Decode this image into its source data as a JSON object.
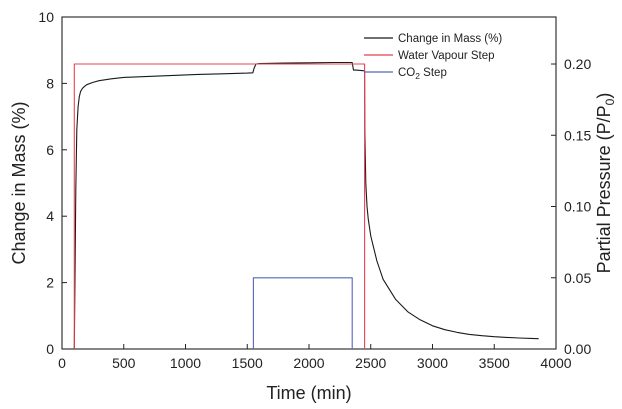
{
  "chart_data": {
    "type": "line",
    "xlabel": "Time (min)",
    "ylabel_left": "Change in Mass (%)",
    "ylabel_right_prefix": "Partial Pressure (P/P",
    "ylabel_right_sub": "0",
    "ylabel_right_suffix": ")",
    "xlim": [
      0,
      4000
    ],
    "ylim_left": [
      0,
      10
    ],
    "ylim_right": [
      0,
      0.233
    ],
    "x_ticks": [
      0,
      500,
      1000,
      1500,
      2000,
      2500,
      3000,
      3500,
      4000
    ],
    "y_left_ticks": [
      0,
      2,
      4,
      6,
      8,
      10
    ],
    "y_right_ticks": [
      "0.00",
      "0.05",
      "0.10",
      "0.15",
      "0.20"
    ],
    "legend_position": "top-right",
    "grid": false,
    "series": [
      {
        "name": "Change in Mass (%)",
        "axis": "left",
        "color": "#1a1a1a",
        "x": [
          100,
          106,
          112,
          120,
          130,
          140,
          150,
          165,
          180,
          200,
          250,
          300,
          400,
          500,
          700,
          900,
          1100,
          1300,
          1500,
          1545,
          1555,
          1570,
          1600,
          1800,
          2000,
          2200,
          2350,
          2360,
          2380,
          2450,
          2452,
          2460,
          2470,
          2480,
          2500,
          2550,
          2600,
          2700,
          2800,
          2900,
          3000,
          3100,
          3200,
          3300,
          3400,
          3500,
          3600,
          3700,
          3800,
          3860
        ],
        "y": [
          0,
          2.5,
          4.8,
          6.6,
          7.3,
          7.6,
          7.75,
          7.85,
          7.9,
          7.96,
          8.03,
          8.08,
          8.14,
          8.18,
          8.21,
          8.24,
          8.27,
          8.29,
          8.31,
          8.32,
          8.45,
          8.58,
          8.6,
          8.61,
          8.62,
          8.63,
          8.63,
          8.4,
          8.4,
          8.38,
          6.6,
          5.0,
          4.3,
          3.9,
          3.4,
          2.65,
          2.1,
          1.5,
          1.12,
          0.88,
          0.7,
          0.58,
          0.5,
          0.44,
          0.4,
          0.37,
          0.35,
          0.33,
          0.32,
          0.31
        ]
      },
      {
        "name": "Water Vapour Step",
        "axis": "right",
        "color": "#e8424f",
        "x": [
          100,
          100,
          2450,
          2450
        ],
        "y": [
          0,
          0.2,
          0.2,
          0
        ]
      },
      {
        "name": "CO2 Step",
        "legend_prefix": "CO",
        "legend_sub": "2",
        "legend_suffix": " Step",
        "axis": "right",
        "color": "#5566bb",
        "x": [
          1550,
          1550,
          2350,
          2350
        ],
        "y": [
          0,
          0.05,
          0.05,
          0
        ]
      }
    ]
  }
}
